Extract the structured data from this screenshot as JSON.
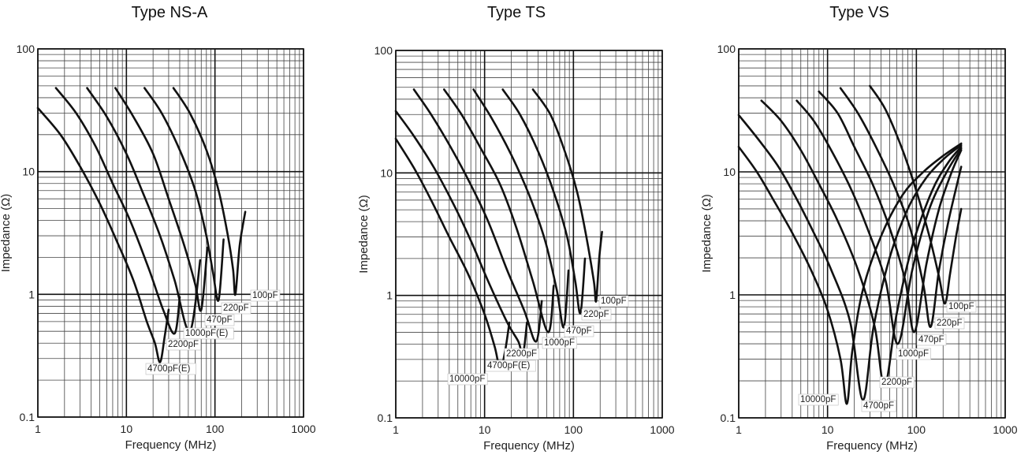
{
  "chart_data": [
    {
      "type": "line",
      "title": "Type NS-A",
      "xlabel": "Frequency (MHz)",
      "ylabel": "Impedance (Ω)",
      "x_scale": "log",
      "y_scale": "log",
      "xlim": [
        1,
        1000
      ],
      "ylim": [
        0.1,
        100
      ],
      "x_ticks": [
        "1",
        "10",
        "100",
        "1000"
      ],
      "y_ticks": [
        "0.1",
        "1",
        "10",
        "100"
      ],
      "grid": true,
      "series": [
        {
          "name": "100pF",
          "label": "100pF",
          "x": [
            34,
            52,
            80,
            110,
            140,
            160,
            170,
            190,
            220
          ],
          "y": [
            48,
            30,
            15,
            7,
            3,
            1.6,
            1.0,
            2.5,
            4.7
          ]
        },
        {
          "name": "220pF",
          "label": "220pF",
          "x": [
            16,
            25,
            40,
            60,
            80,
            95,
            110,
            125
          ],
          "y": [
            48,
            30,
            15,
            7,
            3,
            1.5,
            0.9,
            2.8
          ]
        },
        {
          "name": "470pF",
          "label": "470pF",
          "x": [
            7.5,
            12,
            20,
            30,
            45,
            60,
            70,
            82
          ],
          "y": [
            48,
            28,
            14,
            6,
            2.5,
            1.2,
            0.75,
            2.4
          ]
        },
        {
          "name": "1000pF(E)",
          "label": "1000pF(E)",
          "x": [
            3.6,
            6,
            10,
            15,
            24,
            35,
            52,
            68
          ],
          "y": [
            48,
            28,
            14,
            7,
            3,
            1.3,
            0.5,
            1.9
          ]
        },
        {
          "name": "2200pF",
          "label": "2200pF",
          "x": [
            1.6,
            2.7,
            4.5,
            7,
            11,
            18,
            26,
            35,
            40
          ],
          "y": [
            48,
            30,
            16,
            8,
            4,
            1.6,
            0.75,
            0.48,
            0.95
          ]
        },
        {
          "name": "4700pF(E)",
          "label": "4700pF(E)",
          "x": [
            1,
            1.8,
            3,
            5,
            8,
            12,
            17,
            21,
            24,
            27,
            30
          ],
          "y": [
            33,
            20,
            11,
            5.5,
            2.6,
            1.3,
            0.6,
            0.4,
            0.28,
            0.45,
            0.75
          ]
        }
      ]
    },
    {
      "type": "line",
      "title": "Type TS",
      "xlabel": "Frequency (MHz)",
      "ylabel": "Impedance (Ω)",
      "x_scale": "log",
      "y_scale": "log",
      "xlim": [
        1,
        1000
      ],
      "ylim": [
        0.1,
        100
      ],
      "x_ticks": [
        "1",
        "10",
        "100",
        "1000"
      ],
      "y_ticks": [
        "0.1",
        "1",
        "10",
        "100"
      ],
      "grid": true,
      "series": [
        {
          "name": "100pF",
          "label": "100pF",
          "x": [
            35,
            55,
            80,
            110,
            140,
            170,
            180,
            195,
            210
          ],
          "y": [
            48,
            30,
            15,
            7,
            3,
            1.3,
            0.9,
            2.0,
            3.3
          ]
        },
        {
          "name": "220pF",
          "label": "220pF",
          "x": [
            16,
            25,
            40,
            60,
            85,
            105,
            120,
            135
          ],
          "y": [
            48,
            30,
            15,
            7,
            3,
            1.3,
            0.72,
            2.0
          ]
        },
        {
          "name": "470pF",
          "label": "470pF",
          "x": [
            7.5,
            12,
            20,
            32,
            48,
            65,
            78,
            88
          ],
          "y": [
            48,
            28,
            14,
            6.5,
            2.8,
            1.1,
            0.55,
            1.6
          ]
        },
        {
          "name": "1000pF",
          "label": "1000pF",
          "x": [
            3.5,
            5.5,
            9,
            15,
            23,
            35,
            52,
            60
          ],
          "y": [
            48,
            30,
            16,
            8,
            3.5,
            1.3,
            0.5,
            1.2
          ]
        },
        {
          "name": "2200pF",
          "label": "2200pF",
          "x": [
            1.6,
            2.5,
            4.2,
            7,
            11,
            18,
            28,
            38,
            44
          ],
          "y": [
            48,
            30,
            16,
            8,
            4,
            1.6,
            0.75,
            0.42,
            0.9
          ]
        },
        {
          "name": "4700pF(E)",
          "label": "4700pF(E)",
          "x": [
            1,
            1.6,
            2.7,
            4.5,
            7,
            11,
            18,
            24,
            27,
            30
          ],
          "y": [
            32,
            20,
            11,
            5.5,
            2.8,
            1.3,
            0.6,
            0.42,
            0.33,
            0.6
          ]
        },
        {
          "name": "10000pF",
          "label": "10000pF",
          "x": [
            1,
            1.6,
            2.5,
            4,
            6.5,
            10,
            13,
            15,
            17,
            19
          ],
          "y": [
            19,
            11,
            6,
            3,
            1.5,
            0.7,
            0.38,
            0.25,
            0.35,
            0.6
          ]
        }
      ]
    },
    {
      "type": "line",
      "title": "Type VS",
      "xlabel": "Frequency (MHz)",
      "ylabel": "Impedance (Ω)",
      "x_scale": "log",
      "y_scale": "log",
      "xlim": [
        1,
        1000
      ],
      "ylim": [
        0.1,
        100
      ],
      "x_ticks": [
        "1",
        "10",
        "100",
        "1000"
      ],
      "y_ticks": [
        "0.1",
        "1",
        "10",
        "100"
      ],
      "grid": true,
      "series": [
        {
          "name": "100pF",
          "label": "100pF",
          "x": [
            30,
            45,
            70,
            100,
            140,
            180,
            210,
            240,
            280,
            320
          ],
          "y": [
            50,
            32,
            15,
            7,
            3,
            1.4,
            0.85,
            1.5,
            3,
            5
          ]
        },
        {
          "name": "220pF",
          "label": "220pF",
          "x": [
            14,
            22,
            35,
            55,
            85,
            120,
            145,
            180,
            230,
            320
          ],
          "y": [
            48,
            30,
            16,
            8,
            3.5,
            1.2,
            0.55,
            1.6,
            4,
            11
          ]
        },
        {
          "name": "470pF",
          "label": "470pF",
          "x": [
            8,
            13,
            20,
            32,
            50,
            75,
            95,
            130,
            180,
            250,
            320
          ],
          "y": [
            45,
            30,
            16,
            8,
            3.5,
            1.3,
            0.5,
            1.8,
            5,
            10,
            15
          ]
        },
        {
          "name": "1000pF",
          "label": "1000pF",
          "x": [
            4.5,
            7,
            11,
            18,
            28,
            45,
            62,
            90,
            140,
            220,
            320
          ],
          "y": [
            38,
            26,
            15,
            7.5,
            3.5,
            1.3,
            0.4,
            1.6,
            5,
            10,
            15.5
          ]
        },
        {
          "name": "2200pF",
          "label": "2200pF",
          "x": [
            1.8,
            3,
            5,
            8,
            13,
            22,
            34,
            44,
            60,
            90,
            150,
            230,
            320
          ],
          "y": [
            38,
            26,
            15,
            8,
            4,
            1.6,
            0.55,
            0.18,
            0.7,
            2.5,
            7,
            12,
            16
          ]
        },
        {
          "name": "4700pF",
          "label": "4700pF",
          "x": [
            1,
            1.7,
            2.8,
            4.5,
            7,
            11,
            18,
            25,
            33,
            50,
            80,
            130,
            210,
            320
          ],
          "y": [
            29,
            18,
            11,
            6,
            3.2,
            1.6,
            0.6,
            0.14,
            0.55,
            2,
            5,
            9,
            13,
            16.5
          ]
        },
        {
          "name": "10000pF",
          "label": "10000pF",
          "x": [
            1,
            1.6,
            2.5,
            4,
            6.5,
            10,
            14,
            16.5,
            19,
            25,
            40,
            70,
            120,
            200,
            320
          ],
          "y": [
            16,
            10,
            5.8,
            3.2,
            1.6,
            0.75,
            0.3,
            0.13,
            0.35,
            1.1,
            3,
            6.5,
            10,
            13.5,
            17
          ]
        }
      ]
    }
  ]
}
